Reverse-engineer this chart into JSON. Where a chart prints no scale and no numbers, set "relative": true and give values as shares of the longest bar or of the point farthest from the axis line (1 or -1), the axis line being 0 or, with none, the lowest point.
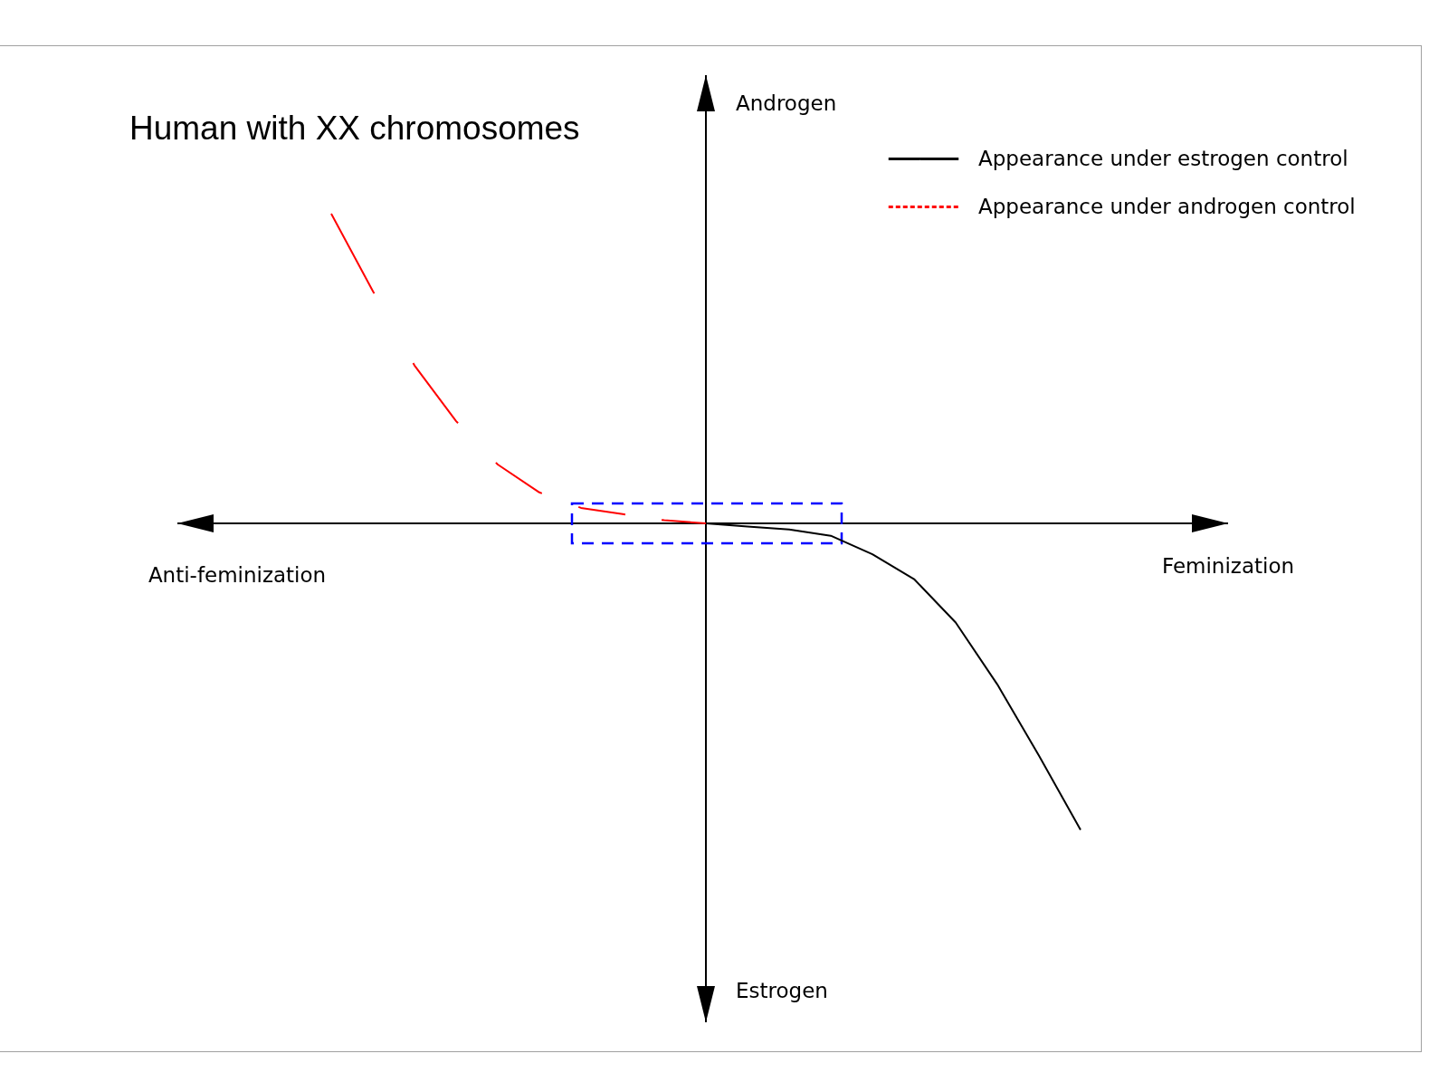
{
  "chart_data": {
    "type": "line",
    "title": "Human with XX chromosomes",
    "relative": true,
    "categories": [
      null,
      null,
      null,
      null,
      null,
      null,
      null,
      null,
      null,
      null,
      null,
      null,
      null,
      null,
      null,
      null,
      null,
      null,
      null
    ],
    "series": [
      {
        "name": "Appearance under estrogen control",
        "color": "#000000",
        "line_style": "solid",
        "values": [
          null,
          null,
          null,
          null,
          null,
          null,
          null,
          null,
          null,
          0,
          -0.01,
          -0.02,
          -0.04,
          -0.1,
          -0.18,
          -0.32,
          -0.52,
          -0.75,
          -0.99
        ]
      },
      {
        "name": "Appearance under androgen control",
        "color": "#ff0000",
        "line_style": "dashed",
        "values": [
          1,
          0.75,
          0.51,
          0.33,
          0.19,
          0.1,
          0.05,
          0.03,
          0.01,
          0,
          null,
          null,
          null,
          null,
          null,
          null,
          null,
          null,
          null
        ]
      }
    ],
    "legend": "top right",
    "annotations": [
      "Androgen",
      "Estrogen",
      "Anti-feminization",
      "Feminization"
    ]
  }
}
